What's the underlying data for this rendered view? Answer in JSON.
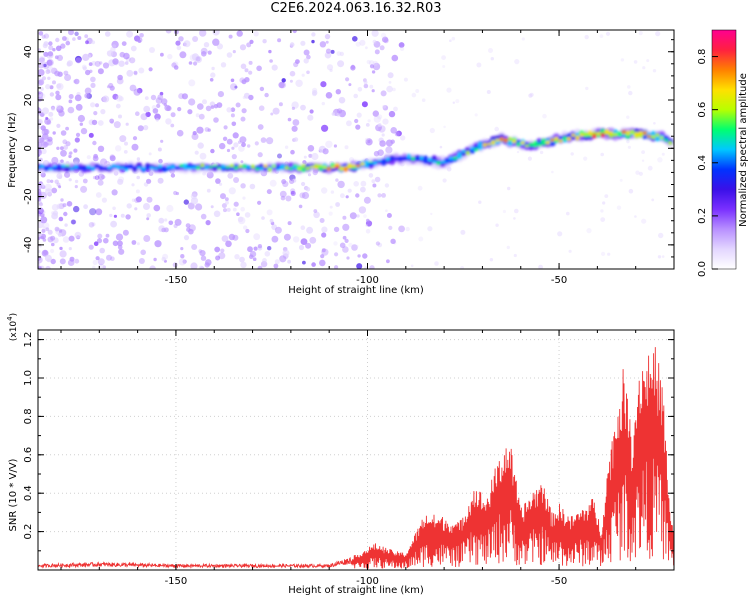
{
  "title": "C2E6.2024.063.16.32.R03",
  "colors": {
    "snr_line": "#ee3333",
    "grid": "#d0d0d0",
    "cmap": [
      "#ffffff",
      "#e3d6ff",
      "#b890ff",
      "#7a30ff",
      "#3a10e8",
      "#0033ff",
      "#00c8ff",
      "#00ff70",
      "#b8ff00",
      "#ffe000",
      "#ff8000",
      "#ff2040",
      "#ff0090"
    ]
  },
  "chart_data": [
    {
      "type": "heatmap",
      "name": "spectrogram",
      "xlabel": "Height of straight line (km)",
      "ylabel": "Frequency (Hz)",
      "xlim": [
        -186,
        -20
      ],
      "ylim": [
        -50,
        49
      ],
      "x_ticks": [
        -150,
        -100,
        -50
      ],
      "y_ticks": [
        -40,
        -20,
        0,
        20,
        40
      ],
      "x_tick_labels": [
        "-150",
        "-100",
        "-50"
      ],
      "y_tick_labels": [
        "-40",
        "-20",
        "0",
        "20",
        "40"
      ],
      "colorbar": {
        "label": "Normalized spectral amplitude",
        "range": [
          0,
          0.9
        ],
        "ticks": [
          0.0,
          0.2,
          0.4,
          0.6,
          0.8
        ],
        "tick_labels": [
          "0.0",
          "0.2",
          "0.4",
          "0.6",
          "0.8"
        ]
      },
      "ridge": {
        "x": [
          -186,
          -160,
          -140,
          -120,
          -105,
          -95,
          -88,
          -80,
          -72,
          -65,
          -58,
          -52,
          -46,
          -40,
          -34,
          -28,
          -22,
          -20
        ],
        "freq": [
          -8,
          -8,
          -8,
          -8,
          -8,
          -5,
          -4,
          -6,
          0,
          4,
          1,
          3,
          5,
          6,
          6,
          6,
          4,
          2
        ],
        "amplitude": [
          0.48,
          0.45,
          0.55,
          0.6,
          0.85,
          0.42,
          0.45,
          0.5,
          0.55,
          0.7,
          0.58,
          0.7,
          0.62,
          0.78,
          0.72,
          0.75,
          0.6,
          0.55
        ]
      }
    },
    {
      "type": "line",
      "name": "snr",
      "xlabel": "Height of straight line (km)",
      "ylabel": "SNR (10 * V/V)",
      "scale_label": "(x10^4)",
      "xlim": [
        -186,
        -20
      ],
      "ylim": [
        0,
        1.25
      ],
      "x_ticks": [
        -150,
        -100,
        -50
      ],
      "y_ticks": [
        0.2,
        0.4,
        0.6,
        0.8,
        1.0,
        1.2
      ],
      "x_tick_labels": [
        "-150",
        "-100",
        "-50"
      ],
      "y_tick_labels": [
        "0.2",
        "0.4",
        "0.6",
        "0.8",
        "1.0",
        "1.2"
      ],
      "envelope": {
        "x": [
          -186,
          -170,
          -150,
          -130,
          -110,
          -103,
          -98,
          -93,
          -90,
          -85,
          -80,
          -76,
          -72,
          -69,
          -66,
          -63,
          -60,
          -57,
          -54,
          -52,
          -50,
          -47,
          -44,
          -41,
          -39,
          -37,
          -35,
          -33,
          -31,
          -29,
          -27,
          -25,
          -23,
          -21,
          -20
        ],
        "y": [
          0.03,
          0.04,
          0.03,
          0.03,
          0.03,
          0.08,
          0.14,
          0.1,
          0.09,
          0.3,
          0.28,
          0.25,
          0.45,
          0.38,
          0.58,
          0.7,
          0.32,
          0.42,
          0.48,
          0.3,
          0.35,
          0.28,
          0.33,
          0.38,
          0.22,
          0.6,
          0.85,
          1.08,
          0.7,
          1.1,
          1.15,
          1.18,
          1.0,
          0.3,
          0.2
        ]
      }
    }
  ]
}
